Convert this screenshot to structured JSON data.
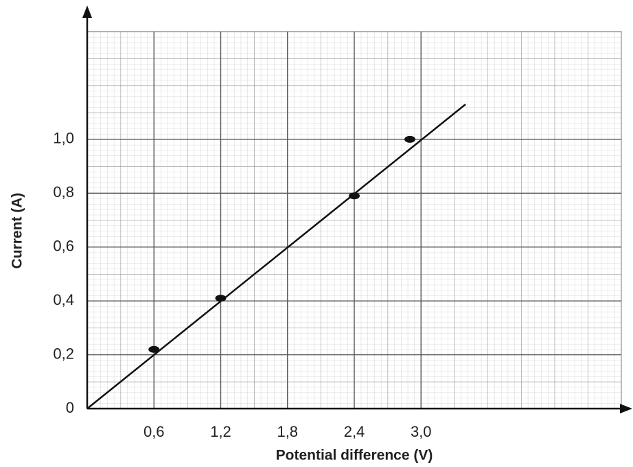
{
  "chart_data": {
    "type": "scatter",
    "x_label": "Potential difference (V)",
    "y_label": "Current (A)",
    "xlim": [
      0,
      4.8
    ],
    "ylim": [
      0,
      1.4
    ],
    "xticks": [
      {
        "value": 0.6,
        "label": "0,6"
      },
      {
        "value": 1.2,
        "label": "1,2"
      },
      {
        "value": 1.8,
        "label": "1,8"
      },
      {
        "value": 2.4,
        "label": "2,4"
      },
      {
        "value": 3.0,
        "label": "3,0"
      }
    ],
    "yticks": [
      0,
      {
        "value": 0.2,
        "label": "0,2"
      },
      {
        "value": 0.4,
        "label": "0,4"
      },
      {
        "value": 0.6,
        "label": "0,6"
      },
      {
        "value": 0.8,
        "label": "0,8"
      },
      {
        "value": 1.0,
        "label": "1,0"
      }
    ],
    "grid": true,
    "series": [
      {
        "style": "points",
        "color": "#111",
        "x": [
          0.6,
          1.2,
          2.4,
          2.9
        ],
        "values": [
          0.22,
          0.41,
          0.79,
          1.0
        ]
      },
      {
        "style": "line",
        "color": "#111",
        "x": [
          0,
          3.4
        ],
        "values": [
          0,
          1.13
        ]
      }
    ]
  }
}
